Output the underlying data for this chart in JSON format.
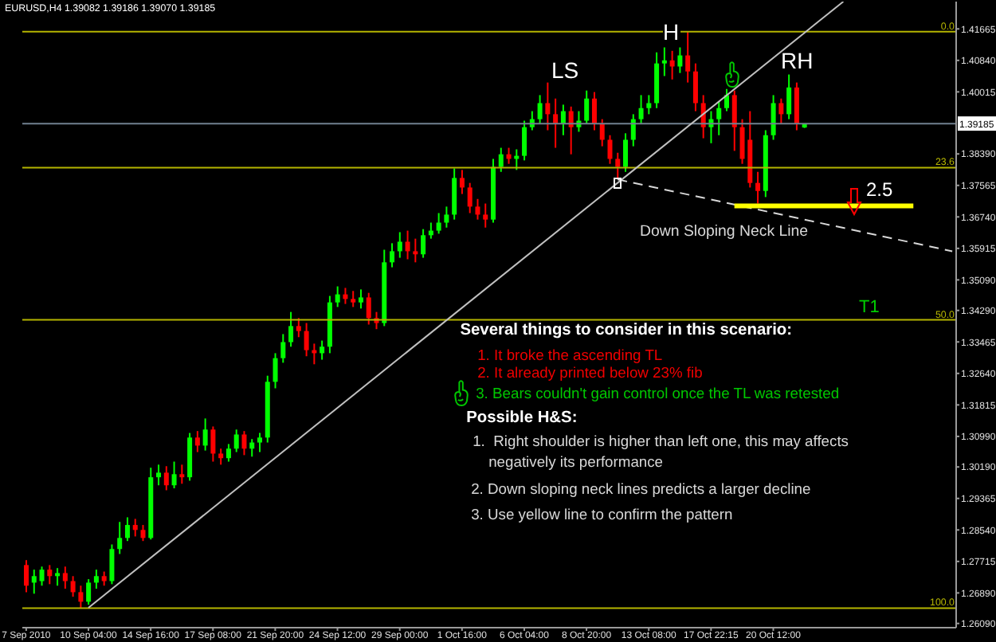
{
  "chart_data": {
    "type": "candlestick",
    "title": "EURUSD,H4 1.39082 1.39186 1.39070 1.39185",
    "categories": [
      "7 Sep 2010",
      null,
      null,
      null,
      null,
      null,
      null,
      null,
      "10 Sep 04:00",
      null,
      null,
      null,
      null,
      null,
      null,
      null,
      "14 Sep 16:00",
      null,
      null,
      null,
      null,
      null,
      null,
      null,
      "17 Sep 08:00",
      null,
      null,
      null,
      null,
      null,
      null,
      null,
      "21 Sep 20:00",
      null,
      null,
      null,
      null,
      null,
      null,
      null,
      "24 Sep 12:00",
      null,
      null,
      null,
      null,
      null,
      null,
      null,
      "29 Sep 00:00",
      null,
      null,
      null,
      null,
      null,
      null,
      null,
      "1 Oct 16:00",
      null,
      null,
      null,
      null,
      null,
      null,
      null,
      "6 Oct 04:00",
      null,
      null,
      null,
      null,
      null,
      null,
      null,
      "8 Oct 20:00",
      null,
      null,
      null,
      null,
      null,
      null,
      null,
      "13 Oct 08:00",
      null,
      null,
      null,
      null,
      null,
      null,
      null,
      "17 Oct 22:15",
      null,
      null,
      null,
      null,
      null,
      null,
      null,
      "20 Oct 12:00",
      null,
      null,
      null,
      null,
      null,
      null,
      null,
      null,
      null,
      null,
      null,
      null,
      null,
      null,
      null,
      null,
      null,
      null,
      null,
      null,
      null,
      null,
      null
    ],
    "ohlc": [
      [
        1.2762,
        1.2775,
        1.2691,
        1.2708
      ],
      [
        1.2716,
        1.275,
        1.2687,
        1.2733
      ],
      [
        1.272,
        1.2758,
        1.2708,
        1.275
      ],
      [
        1.275,
        1.2762,
        1.2712,
        1.2733
      ],
      [
        1.2733,
        1.2754,
        1.2708,
        1.2741
      ],
      [
        1.2741,
        1.2758,
        1.27,
        1.272
      ],
      [
        1.272,
        1.2733,
        1.2679,
        1.2691
      ],
      [
        1.2691,
        1.2708,
        1.265,
        1.2666
      ],
      [
        1.2666,
        1.2725,
        1.2658,
        1.2716
      ],
      [
        1.2716,
        1.275,
        1.27,
        1.2733
      ],
      [
        1.2733,
        1.2745,
        1.2708,
        1.272
      ],
      [
        1.272,
        1.2816,
        1.2712,
        1.2804
      ],
      [
        1.2804,
        1.2875,
        1.2791,
        1.2833
      ],
      [
        1.2833,
        1.2887,
        1.2825,
        1.2867
      ],
      [
        1.2867,
        1.2883,
        1.2837,
        1.2854
      ],
      [
        1.2854,
        1.2867,
        1.2825,
        1.2833
      ],
      [
        1.2833,
        1.3017,
        1.2829,
        1.2992
      ],
      [
        1.2992,
        1.3025,
        1.2971,
        1.3004
      ],
      [
        1.3004,
        1.3021,
        1.2958,
        1.2971
      ],
      [
        1.2971,
        1.3033,
        1.2963,
        1.3
      ],
      [
        1.3,
        1.3025,
        1.2975,
        1.2992
      ],
      [
        1.2992,
        1.3108,
        1.2983,
        1.3096
      ],
      [
        1.3096,
        1.3113,
        1.3058,
        1.3075
      ],
      [
        1.3075,
        1.3146,
        1.3062,
        1.3117
      ],
      [
        1.3117,
        1.3125,
        1.3033,
        1.3054
      ],
      [
        1.3054,
        1.3067,
        1.3025,
        1.3042
      ],
      [
        1.3042,
        1.3079,
        1.3033,
        1.3067
      ],
      [
        1.3067,
        1.3117,
        1.3058,
        1.3104
      ],
      [
        1.3104,
        1.3113,
        1.305,
        1.3067
      ],
      [
        1.3067,
        1.3092,
        1.3046,
        1.3083
      ],
      [
        1.3083,
        1.3108,
        1.3058,
        1.3096
      ],
      [
        1.3096,
        1.3258,
        1.3083,
        1.3242
      ],
      [
        1.3242,
        1.3317,
        1.3225,
        1.3304
      ],
      [
        1.3304,
        1.3367,
        1.3292,
        1.3346
      ],
      [
        1.3346,
        1.3425,
        1.3334,
        1.3388
      ],
      [
        1.3388,
        1.3409,
        1.3359,
        1.3375
      ],
      [
        1.3375,
        1.3396,
        1.3309,
        1.3325
      ],
      [
        1.3325,
        1.3342,
        1.3288,
        1.3317
      ],
      [
        1.3317,
        1.335,
        1.33,
        1.3334
      ],
      [
        1.3334,
        1.3467,
        1.3317,
        1.345
      ],
      [
        1.345,
        1.3492,
        1.3438,
        1.3471
      ],
      [
        1.3471,
        1.3488,
        1.3446,
        1.3459
      ],
      [
        1.3459,
        1.348,
        1.3438,
        1.345
      ],
      [
        1.345,
        1.3484,
        1.3434,
        1.3463
      ],
      [
        1.3463,
        1.3475,
        1.3392,
        1.3409
      ],
      [
        1.3409,
        1.3425,
        1.338,
        1.3396
      ],
      [
        1.3396,
        1.3588,
        1.3388,
        1.3555
      ],
      [
        1.3555,
        1.3605,
        1.3542,
        1.3584
      ],
      [
        1.3584,
        1.3634,
        1.3567,
        1.3609
      ],
      [
        1.3609,
        1.3638,
        1.3563,
        1.3584
      ],
      [
        1.3584,
        1.3617,
        1.3555,
        1.3576
      ],
      [
        1.3576,
        1.3642,
        1.3567,
        1.3626
      ],
      [
        1.3626,
        1.3659,
        1.3617,
        1.3638
      ],
      [
        1.3638,
        1.3684,
        1.363,
        1.3659
      ],
      [
        1.3659,
        1.3701,
        1.3646,
        1.368
      ],
      [
        1.368,
        1.3801,
        1.3667,
        1.3776
      ],
      [
        1.3776,
        1.3797,
        1.3734,
        1.3751
      ],
      [
        1.3751,
        1.3763,
        1.3684,
        1.3701
      ],
      [
        1.3701,
        1.3721,
        1.3667,
        1.368
      ],
      [
        1.368,
        1.3709,
        1.3646,
        1.3667
      ],
      [
        1.3667,
        1.3826,
        1.3659,
        1.3805
      ],
      [
        1.3805,
        1.3855,
        1.3792,
        1.3838
      ],
      [
        1.3838,
        1.3855,
        1.3813,
        1.3826
      ],
      [
        1.3826,
        1.3851,
        1.3797,
        1.3834
      ],
      [
        1.3834,
        1.3926,
        1.3822,
        1.3909
      ],
      [
        1.3909,
        1.3951,
        1.3901,
        1.393
      ],
      [
        1.393,
        1.3993,
        1.3917,
        1.3972
      ],
      [
        1.3972,
        1.4026,
        1.3901,
        1.3943
      ],
      [
        1.3943,
        1.3984,
        1.3855,
        1.3917
      ],
      [
        1.3917,
        1.3968,
        1.3888,
        1.3951
      ],
      [
        1.3951,
        1.3963,
        1.3838,
        1.3909
      ],
      [
        1.3909,
        1.3951,
        1.3897,
        1.3926
      ],
      [
        1.3926,
        1.4005,
        1.3917,
        1.3984
      ],
      [
        1.3984,
        1.4001,
        1.3901,
        1.3917
      ],
      [
        1.3917,
        1.393,
        1.3859,
        1.3876
      ],
      [
        1.3876,
        1.3888,
        1.3813,
        1.3826
      ],
      [
        1.3826,
        1.3842,
        1.3776,
        1.3805
      ],
      [
        1.3805,
        1.3893,
        1.3792,
        1.3876
      ],
      [
        1.3876,
        1.3943,
        1.3859,
        1.393
      ],
      [
        1.393,
        1.3993,
        1.3917,
        1.3959
      ],
      [
        1.3959,
        1.3993,
        1.3943,
        1.3972
      ],
      [
        1.3972,
        1.4105,
        1.3959,
        1.4076
      ],
      [
        1.4076,
        1.4118,
        1.4043,
        1.4084
      ],
      [
        1.4084,
        1.4109,
        1.4034,
        1.4068
      ],
      [
        1.4068,
        1.4118,
        1.4051,
        1.4097
      ],
      [
        1.4097,
        1.4159,
        1.4026,
        1.4055
      ],
      [
        1.4055,
        1.4076,
        1.3951,
        1.3972
      ],
      [
        1.3972,
        1.3993,
        1.388,
        1.3909
      ],
      [
        1.3909,
        1.3951,
        1.3867,
        1.393
      ],
      [
        1.393,
        1.3976,
        1.3888,
        1.3959
      ],
      [
        1.3959,
        1.4009,
        1.3951,
        1.3993
      ],
      [
        1.3993,
        1.4005,
        1.3847,
        1.3909
      ],
      [
        1.3909,
        1.393,
        1.3813,
        1.3826
      ],
      [
        1.3876,
        1.3951,
        1.3751,
        1.3763
      ],
      [
        1.3763,
        1.3792,
        1.3709,
        1.3742
      ],
      [
        1.3742,
        1.3901,
        1.3726,
        1.3888
      ],
      [
        1.3888,
        1.3993,
        1.3876,
        1.3972
      ],
      [
        1.3972,
        1.3984,
        1.3917,
        1.3943
      ],
      [
        1.3943,
        1.4047,
        1.393,
        1.4013
      ],
      [
        1.4013,
        1.4026,
        1.3901,
        1.3917
      ],
      [
        1.39082,
        1.39186,
        1.3907,
        1.39185
      ],
      null,
      null,
      null,
      null,
      null,
      null,
      null,
      null,
      null,
      null,
      null,
      null,
      null,
      null,
      null,
      null,
      null,
      null,
      null
    ],
    "colors": [
      "#ff0000",
      "#00ff00",
      "#00ff00",
      "#ff0000",
      "#00ff00",
      "#ff0000",
      "#ff0000",
      "#ff0000",
      "#00ff00",
      "#00ff00",
      "#ff0000",
      "#00ff00",
      "#00ff00",
      "#00ff00",
      "#ff0000",
      "#ff0000",
      "#00ff00",
      "#00ff00",
      "#ff0000",
      "#00ff00",
      "#ff0000",
      "#00ff00",
      "#ff0000",
      "#00ff00",
      "#ff0000",
      "#ff0000",
      "#00ff00",
      "#00ff00",
      "#ff0000",
      "#00ff00",
      "#00ff00",
      "#00ff00",
      "#00ff00",
      "#00ff00",
      "#00ff00",
      "#ff0000",
      "#ff0000",
      "#ff0000",
      "#00ff00",
      "#00ff00",
      "#00ff00",
      "#ff0000",
      "#ff0000",
      "#00ff00",
      "#ff0000",
      "#ff0000",
      "#00ff00",
      "#00ff00",
      "#00ff00",
      "#ff0000",
      "#ff0000",
      "#00ff00",
      "#00ff00",
      "#00ff00",
      "#00ff00",
      "#00ff00",
      "#ff0000",
      "#ff0000",
      "#ff0000",
      "#ff0000",
      "#00ff00",
      "#00ff00",
      "#ff0000",
      "#00ff00",
      "#00ff00",
      "#00ff00",
      "#00ff00",
      "#ff0000",
      "#ff0000",
      "#00ff00",
      "#ff0000",
      "#00ff00",
      "#00ff00",
      "#ff0000",
      "#ff0000",
      "#ff0000",
      "#ff0000",
      "#00ff00",
      "#00ff00",
      "#00ff00",
      "#00ff00",
      "#00ff00",
      "#00ff00",
      "#ff0000",
      "#00ff00",
      "#ff0000",
      "#ff0000",
      "#ff0000",
      "#00ff00",
      "#00ff00",
      "#00ff00",
      "#ff0000",
      "#ff0000",
      "#ff0000",
      "#ff0000",
      "#00ff00",
      "#00ff00",
      "#ff0000",
      "#00ff00",
      "#ff0000",
      "#00ff00",
      null,
      null,
      null,
      null,
      null,
      null,
      null,
      null,
      null,
      null,
      null,
      null,
      null,
      null,
      null,
      null,
      null,
      null,
      null
    ],
    "series": [
      {
        "type": "line",
        "color": "#c0c0c0",
        "line_style": "solid",
        "values": [
          null,
          null,
          null,
          null,
          null,
          null,
          null,
          null,
          1.265,
          null,
          null,
          null,
          null,
          null,
          null,
          null,
          null,
          null,
          null,
          null,
          null,
          null,
          null,
          null,
          null,
          null,
          null,
          null,
          null,
          null,
          null,
          null,
          null,
          null,
          null,
          null,
          null,
          null,
          null,
          null,
          null,
          null,
          null,
          null,
          null,
          null,
          null,
          null,
          null,
          null,
          null,
          null,
          null,
          null,
          null,
          null,
          null,
          null,
          null,
          null,
          null,
          null,
          null,
          null,
          null,
          null,
          null,
          null,
          null,
          null,
          null,
          null,
          null,
          null,
          null,
          null,
          null,
          null,
          null,
          null,
          null,
          null,
          null,
          null,
          null,
          null,
          null,
          null,
          null,
          null,
          null,
          null,
          null,
          null,
          null,
          null,
          null,
          null,
          null,
          null,
          null,
          null,
          null,
          null,
          null,
          1.4238,
          null,
          null,
          null,
          null,
          null,
          null,
          null,
          null,
          null,
          null,
          null,
          null,
          null,
          null
        ]
      },
      {
        "type": "line",
        "color": "#d8d8d8",
        "line_style": "dashed",
        "values": [
          null,
          null,
          null,
          null,
          null,
          null,
          null,
          null,
          null,
          null,
          null,
          null,
          null,
          null,
          null,
          null,
          null,
          null,
          null,
          null,
          null,
          null,
          null,
          null,
          null,
          null,
          null,
          null,
          null,
          null,
          null,
          null,
          null,
          null,
          null,
          null,
          null,
          null,
          null,
          null,
          null,
          null,
          null,
          null,
          null,
          null,
          null,
          null,
          null,
          null,
          null,
          null,
          null,
          null,
          null,
          null,
          null,
          null,
          null,
          null,
          null,
          null,
          null,
          null,
          null,
          null,
          null,
          null,
          null,
          null,
          null,
          null,
          null,
          null,
          null,
          null,
          1.3772,
          null,
          null,
          null,
          null,
          null,
          null,
          null,
          null,
          null,
          null,
          null,
          null,
          null,
          null,
          null,
          null,
          null,
          null,
          null,
          null,
          null,
          null,
          null,
          null,
          null,
          null,
          null,
          null,
          null,
          null,
          null,
          null,
          null,
          null,
          null,
          null,
          null,
          null,
          null,
          null,
          null,
          null,
          1.3584
        ]
      },
      {
        "type": "line",
        "color": "#ffff00",
        "line_style": "solid",
        "values": [
          null,
          null,
          null,
          null,
          null,
          null,
          null,
          null,
          null,
          null,
          null,
          null,
          null,
          null,
          null,
          null,
          null,
          null,
          null,
          null,
          null,
          null,
          null,
          null,
          null,
          null,
          null,
          null,
          null,
          null,
          null,
          null,
          null,
          null,
          null,
          null,
          null,
          null,
          null,
          null,
          null,
          null,
          null,
          null,
          null,
          null,
          null,
          null,
          null,
          null,
          null,
          null,
          null,
          null,
          null,
          null,
          null,
          null,
          null,
          null,
          null,
          null,
          null,
          null,
          null,
          null,
          null,
          null,
          null,
          null,
          null,
          null,
          null,
          null,
          null,
          null,
          null,
          null,
          null,
          null,
          null,
          null,
          null,
          null,
          null,
          null,
          null,
          null,
          null,
          null,
          null,
          1.3703,
          null,
          null,
          null,
          null,
          null,
          null,
          null,
          null,
          null,
          null,
          null,
          null,
          null,
          null,
          null,
          null,
          null,
          null,
          null,
          null,
          null,
          null,
          1.3703,
          null,
          null,
          null,
          null,
          null
        ]
      }
    ],
    "ylim": [
      1.2598,
      1.4238
    ],
    "yticks": [
      {
        "value": 1.2609,
        "label": "1.26090"
      },
      {
        "value": 1.2689,
        "label": "1.26890"
      },
      1.27715,
      {
        "value": 1.2854,
        "label": "1.28540"
      },
      1.29365,
      {
        "value": 1.3019,
        "label": "1.30190"
      },
      {
        "value": 1.3099,
        "label": "1.30990"
      },
      1.31815,
      {
        "value": 1.3264,
        "label": "1.32640"
      },
      1.33465,
      {
        "value": 1.3429,
        "label": "1.34290"
      },
      {
        "value": 1.3509,
        "label": "1.35090"
      },
      1.35915,
      {
        "value": 1.3674,
        "label": "1.36740"
      },
      1.37565,
      {
        "value": 1.3839,
        "label": "1.38390"
      },
      1.40015,
      {
        "value": 1.4084,
        "label": "1.40840"
      },
      1.41665
    ],
    "y2lim": [
      103.4,
      -5.2
    ],
    "ref_lines": [
      {
        "axis": "y2",
        "value": 0,
        "label": "0.0",
        "color": "#b4b400"
      },
      {
        "axis": "y2",
        "value": 23.6,
        "label": "23.6",
        "color": "#b4b400"
      },
      {
        "axis": "y2",
        "value": 50,
        "label": "50.0",
        "color": "#b4b400"
      },
      {
        "axis": "y2",
        "value": 100,
        "label": "100.0",
        "color": "#b4b400"
      },
      {
        "axis": "y",
        "value": 1.39185,
        "label": "1.39185",
        "color": "#708090"
      }
    ],
    "annotations": [
      "LS",
      "H",
      "RH",
      "2.5",
      "Down Sloping Neck Line",
      "T1",
      "Several things to consider in this scenario:",
      "1. It broke the ascending TL",
      "2. It already printed below 23% fib",
      "3. Bears couldn't gain control once the TL was retested",
      "Possible H&S:",
      "1.  Right shoulder is higher than left one, this may affects negatively its performance",
      "2. Down sloping neck lines predicts a larger decline",
      "3. Use yellow line to confirm the pattern"
    ]
  }
}
